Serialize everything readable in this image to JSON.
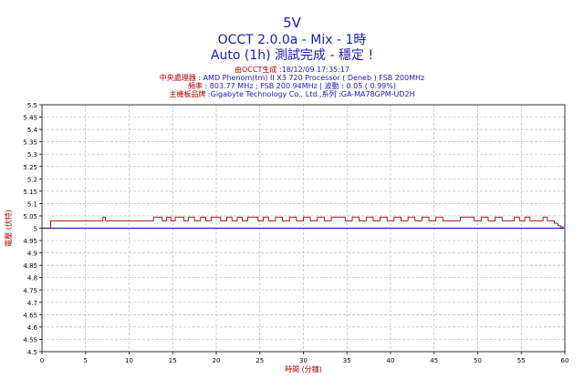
{
  "header": {
    "title": "5V",
    "subtitle": "OCCT 2.0.0a - Mix - 1時",
    "subtitle2": "Auto (1h) 測試完成 - 穩定 !"
  },
  "info": [
    {
      "label": "由OCCT生成",
      "value": " :18/12/09 17:35:17"
    },
    {
      "label": "中央處理器",
      "value": " : AMD Phenom(tm) II X3 720 Processor ( Deneb ) FSB 200MHz"
    },
    {
      "label": "頻率",
      "value": " : 803.77 MHz ; FSB 200.94MHz | 波動 : 0.05 ( 0.99%)"
    },
    {
      "label": "主機板品牌",
      "value": " :Gigabyte Technology Co., Ltd.,系列 :GA-MA78GPM-UD2H"
    }
  ],
  "colors": {
    "axis_label": "#b00000",
    "series": "#a00000",
    "reference": "#2020c0",
    "grid": "#bbbbbb"
  },
  "chart_data": {
    "type": "line",
    "xlabel": "時間 (分鐘)",
    "ylabel": "電壓 (伏特)",
    "xlim": [
      0,
      60
    ],
    "ylim": [
      4.5,
      5.5
    ],
    "xticks": [
      "0",
      "5",
      "10",
      "15",
      "20",
      "25",
      "30",
      "35",
      "40",
      "45",
      "50",
      "55",
      "60"
    ],
    "yticks": [
      "4.5",
      "4.55",
      "4.6",
      "4.65",
      "4.7",
      "4.75",
      "4.8",
      "4.85",
      "4.9",
      "4.95",
      "5",
      "5.05",
      "5.1",
      "5.15",
      "5.2",
      "5.25",
      "5.3",
      "5.35",
      "5.4",
      "5.45",
      "5.5"
    ],
    "grid": true,
    "reference_line": 5.0,
    "series": [
      {
        "x": [
          0,
          0.8,
          1.0,
          2,
          4,
          6,
          6.8,
          7.0,
          7.3,
          8,
          9,
          10,
          11,
          12.5,
          12.8,
          13.3,
          13.8,
          14.3,
          14.8,
          15.3,
          16.0,
          16.3,
          16.8,
          17.5,
          18.2,
          18.8,
          19.4,
          20.0,
          20.5,
          21.2,
          21.8,
          22.4,
          23.0,
          23.6,
          24.2,
          24.8,
          25.4,
          26.0,
          26.8,
          27.6,
          28.4,
          29.2,
          30.0,
          30.8,
          31.6,
          32.4,
          33.2,
          34.0,
          34.8,
          35.6,
          36.4,
          37.2,
          38.0,
          38.8,
          39.6,
          40.4,
          41.2,
          42.0,
          42.8,
          43.6,
          44.4,
          45.2,
          46.0,
          46.8,
          47.5,
          48.0,
          48.8,
          49.6,
          50.4,
          51.2,
          52.0,
          52.8,
          53.5,
          54.2,
          54.8,
          55.4,
          56.0,
          56.8,
          57.5,
          58.0,
          58.4,
          58.8,
          59.2,
          59.5,
          59.8
        ],
        "values": [
          5.0,
          5.0,
          5.03,
          5.03,
          5.03,
          5.03,
          5.03,
          5.045,
          5.03,
          5.03,
          5.03,
          5.03,
          5.03,
          5.03,
          5.045,
          5.045,
          5.03,
          5.045,
          5.03,
          5.045,
          5.045,
          5.03,
          5.045,
          5.03,
          5.045,
          5.03,
          5.045,
          5.045,
          5.03,
          5.045,
          5.03,
          5.045,
          5.03,
          5.045,
          5.045,
          5.03,
          5.045,
          5.03,
          5.045,
          5.03,
          5.045,
          5.03,
          5.045,
          5.03,
          5.045,
          5.03,
          5.045,
          5.045,
          5.03,
          5.045,
          5.03,
          5.045,
          5.03,
          5.045,
          5.03,
          5.045,
          5.03,
          5.045,
          5.03,
          5.045,
          5.03,
          5.045,
          5.03,
          5.03,
          5.03,
          5.045,
          5.045,
          5.03,
          5.045,
          5.03,
          5.045,
          5.03,
          5.03,
          5.045,
          5.03,
          5.045,
          5.03,
          5.03,
          5.045,
          5.03,
          5.03,
          5.02,
          5.01,
          5.005,
          5.0
        ]
      }
    ]
  }
}
